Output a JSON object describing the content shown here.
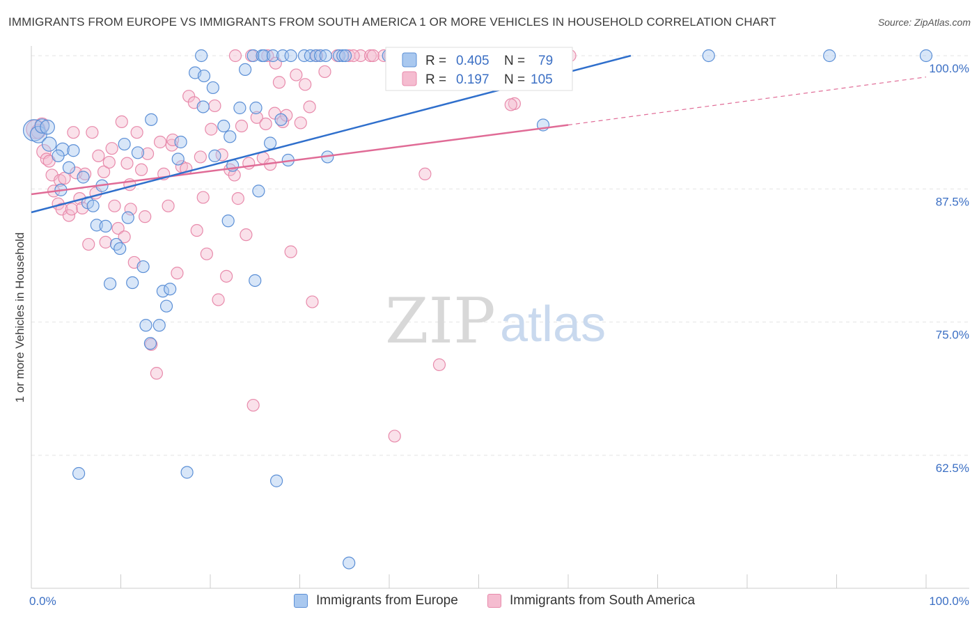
{
  "header": {
    "title": "IMMIGRANTS FROM EUROPE VS IMMIGRANTS FROM SOUTH AMERICA 1 OR MORE VEHICLES IN HOUSEHOLD CORRELATION CHART",
    "source": "Source: ZipAtlas.com"
  },
  "watermark": {
    "zip": "ZIP",
    "atlas": "atlas"
  },
  "legend_stats": {
    "europe": {
      "r_label": "R =",
      "r_value": "0.405",
      "n_label": "N =",
      "n_value": "79"
    },
    "south_america": {
      "r_label": "R =",
      "r_value": "0.197",
      "n_label": "N =",
      "n_value": "105"
    }
  },
  "colors": {
    "europe_fill": "#a9c8ef",
    "europe_stroke": "#5b8fd6",
    "europe_line": "#2f6fcc",
    "sa_fill": "#f5bcd0",
    "sa_stroke": "#e88aab",
    "sa_line": "#e06b96",
    "tick_text": "#3b6fc4",
    "grid": "#e3e3e3"
  },
  "chart_data": {
    "type": "scatter",
    "title": "IMMIGRANTS FROM EUROPE VS IMMIGRANTS FROM SOUTH AMERICA 1 OR MORE VEHICLES IN HOUSEHOLD CORRELATION CHART",
    "xlabel": "",
    "ylabel": "1 or more Vehicles in Household",
    "xlim": [
      0,
      100
    ],
    "ylim": [
      52.5,
      102.5
    ],
    "x_tick_labels": [
      "0.0%",
      "100.0%"
    ],
    "y_ticks": [
      62.5,
      75.0,
      87.5,
      100.0
    ],
    "y_tick_labels": [
      "62.5%",
      "75.0%",
      "87.5%",
      "100.0%"
    ],
    "grid": true,
    "legend_position": "bottom",
    "series": [
      {
        "name": "Immigrants from Europe",
        "r": 0.405,
        "n": 79,
        "trend": {
          "x": [
            0,
            67
          ],
          "y": [
            85.3,
            100.0
          ]
        },
        "points": [
          [
            0.3,
            93.0,
            18
          ],
          [
            0.8,
            92.6,
            14
          ],
          [
            1.2,
            93.4,
            12
          ],
          [
            1.8,
            93.3,
            12
          ],
          [
            2.0,
            91.7,
            12
          ],
          [
            3.5,
            91.2,
            11
          ],
          [
            4.7,
            91.1,
            10
          ],
          [
            4.2,
            89.5,
            10
          ],
          [
            3.0,
            90.6,
            10
          ],
          [
            5.8,
            88.6,
            10
          ],
          [
            7.9,
            87.8,
            10
          ],
          [
            6.3,
            86.2,
            10
          ],
          [
            6.9,
            85.9,
            10
          ],
          [
            3.3,
            87.4,
            10
          ],
          [
            7.3,
            84.1,
            10
          ],
          [
            8.3,
            84.0,
            10
          ],
          [
            9.5,
            82.3,
            10
          ],
          [
            9.9,
            81.9,
            10
          ],
          [
            10.8,
            84.8,
            10
          ],
          [
            12.5,
            80.2,
            10
          ],
          [
            8.8,
            78.6,
            10
          ],
          [
            11.3,
            78.7,
            10
          ],
          [
            14.7,
            77.9,
            10
          ],
          [
            15.5,
            78.1,
            10
          ],
          [
            15.1,
            76.5,
            10
          ],
          [
            12.8,
            74.7,
            10
          ],
          [
            14.3,
            74.7,
            10
          ],
          [
            13.3,
            73.0,
            10
          ],
          [
            5.3,
            60.8,
            10
          ],
          [
            17.4,
            60.9,
            10
          ],
          [
            27.4,
            60.1,
            10
          ],
          [
            35.5,
            52.4,
            10
          ],
          [
            10.4,
            91.7,
            10
          ],
          [
            11.9,
            90.9,
            10
          ],
          [
            13.4,
            94.0,
            10
          ],
          [
            16.7,
            91.9,
            10
          ],
          [
            16.4,
            90.3,
            10
          ],
          [
            18.3,
            98.4,
            10
          ],
          [
            19.2,
            95.2,
            10
          ],
          [
            19.3,
            98.1,
            10
          ],
          [
            20.3,
            97.0,
            10
          ],
          [
            20.5,
            90.6,
            10
          ],
          [
            21.5,
            93.4,
            10
          ],
          [
            23.9,
            98.7,
            10
          ],
          [
            22.2,
            92.4,
            10
          ],
          [
            22.5,
            89.7,
            10
          ],
          [
            22.0,
            84.5,
            10
          ],
          [
            25.1,
            95.1,
            10
          ],
          [
            23.3,
            95.1,
            10
          ],
          [
            27.9,
            94.0,
            10
          ],
          [
            25.4,
            87.3,
            10
          ],
          [
            25.0,
            78.9,
            10
          ],
          [
            26.7,
            91.8,
            10
          ],
          [
            28.7,
            90.2,
            10
          ],
          [
            33.1,
            90.5,
            10
          ],
          [
            19.0,
            100.0,
            10
          ],
          [
            24.8,
            100.0,
            10
          ],
          [
            25.8,
            100.0,
            10
          ],
          [
            26.0,
            100.0,
            10
          ],
          [
            27.0,
            100.0,
            10
          ],
          [
            28.1,
            100.0,
            10
          ],
          [
            29.0,
            100.0,
            10
          ],
          [
            30.5,
            100.0,
            10
          ],
          [
            31.2,
            100.0,
            10
          ],
          [
            31.8,
            100.0,
            10
          ],
          [
            32.3,
            100.0,
            10
          ],
          [
            32.9,
            100.0,
            10
          ],
          [
            34.4,
            100.0,
            10
          ],
          [
            34.8,
            100.0,
            10
          ],
          [
            35.1,
            100.0,
            10
          ],
          [
            39.9,
            100.0,
            10
          ],
          [
            43.5,
            100.0,
            10
          ],
          [
            47.7,
            100.0,
            10
          ],
          [
            48.5,
            100.0,
            10
          ],
          [
            53.8,
            100.0,
            10
          ],
          [
            75.7,
            100.0,
            10
          ],
          [
            89.2,
            100.0,
            10
          ],
          [
            100.0,
            100.0,
            10
          ],
          [
            57.2,
            93.5,
            10
          ]
        ]
      },
      {
        "name": "Immigrants from South America",
        "r": 0.197,
        "n": 105,
        "trend": {
          "x": [
            0,
            60
          ],
          "y": [
            87.0,
            93.5
          ]
        },
        "trend_dashed": {
          "x": [
            60,
            100
          ],
          "y": [
            93.5,
            98.0
          ]
        },
        "points": [
          [
            0.5,
            93.1,
            16
          ],
          [
            1.2,
            93.5,
            12
          ],
          [
            0.8,
            92.9,
            12
          ],
          [
            1.4,
            91.0,
            12
          ],
          [
            1.7,
            90.3,
            10
          ],
          [
            2.0,
            90.1,
            10
          ],
          [
            2.3,
            88.8,
            10
          ],
          [
            2.5,
            87.3,
            10
          ],
          [
            3.0,
            86.1,
            10
          ],
          [
            3.2,
            88.3,
            10
          ],
          [
            3.4,
            85.6,
            10
          ],
          [
            3.7,
            88.5,
            10
          ],
          [
            4.2,
            85.0,
            10
          ],
          [
            4.5,
            85.6,
            10
          ],
          [
            4.7,
            92.8,
            10
          ],
          [
            5.0,
            89.0,
            10
          ],
          [
            5.4,
            86.6,
            10
          ],
          [
            5.7,
            85.7,
            10
          ],
          [
            6.0,
            88.9,
            10
          ],
          [
            6.4,
            82.3,
            10
          ],
          [
            6.8,
            92.8,
            10
          ],
          [
            7.2,
            87.1,
            10
          ],
          [
            7.5,
            90.6,
            10
          ],
          [
            8.1,
            89.1,
            10
          ],
          [
            8.3,
            82.5,
            10
          ],
          [
            8.7,
            90.0,
            10
          ],
          [
            9.0,
            91.3,
            10
          ],
          [
            9.3,
            85.9,
            10
          ],
          [
            9.7,
            83.8,
            10
          ],
          [
            10.1,
            93.8,
            10
          ],
          [
            10.4,
            83.0,
            10
          ],
          [
            10.7,
            89.9,
            10
          ],
          [
            11.1,
            85.6,
            10
          ],
          [
            11.5,
            80.6,
            10
          ],
          [
            11.8,
            92.8,
            10
          ],
          [
            12.3,
            89.3,
            10
          ],
          [
            12.7,
            84.9,
            10
          ],
          [
            13.0,
            90.8,
            10
          ],
          [
            13.4,
            72.9,
            10
          ],
          [
            14.0,
            70.2,
            10
          ],
          [
            14.4,
            91.9,
            10
          ],
          [
            14.8,
            88.9,
            10
          ],
          [
            15.3,
            85.9,
            10
          ],
          [
            15.7,
            91.6,
            10
          ],
          [
            16.3,
            79.6,
            10
          ],
          [
            16.8,
            89.6,
            10
          ],
          [
            17.3,
            89.4,
            10
          ],
          [
            17.6,
            96.2,
            10
          ],
          [
            18.2,
            95.6,
            10
          ],
          [
            18.5,
            83.6,
            10
          ],
          [
            18.9,
            90.5,
            10
          ],
          [
            19.2,
            86.7,
            10
          ],
          [
            19.6,
            81.4,
            10
          ],
          [
            20.1,
            93.1,
            10
          ],
          [
            20.5,
            95.3,
            10
          ],
          [
            20.9,
            77.1,
            10
          ],
          [
            21.3,
            90.7,
            10
          ],
          [
            21.8,
            79.3,
            10
          ],
          [
            22.2,
            89.3,
            10
          ],
          [
            22.7,
            88.8,
            10
          ],
          [
            23.1,
            86.6,
            10
          ],
          [
            23.5,
            93.4,
            10
          ],
          [
            24.0,
            83.2,
            10
          ],
          [
            24.3,
            89.9,
            10
          ],
          [
            24.8,
            67.2,
            10
          ],
          [
            25.2,
            94.2,
            10
          ],
          [
            25.9,
            90.4,
            10
          ],
          [
            26.2,
            93.6,
            10
          ],
          [
            26.7,
            89.8,
            10
          ],
          [
            27.2,
            94.6,
            10
          ],
          [
            27.7,
            97.5,
            10
          ],
          [
            28.1,
            93.8,
            10
          ],
          [
            29.0,
            81.6,
            10
          ],
          [
            29.6,
            98.2,
            10
          ],
          [
            30.1,
            93.7,
            10
          ],
          [
            30.6,
            97.3,
            10
          ],
          [
            31.1,
            95.2,
            10
          ],
          [
            31.4,
            76.9,
            10
          ],
          [
            31.9,
            100.0,
            10
          ],
          [
            32.8,
            98.5,
            10
          ],
          [
            34.2,
            100.0,
            10
          ],
          [
            36.8,
            100.0,
            10
          ],
          [
            37.9,
            100.0,
            10
          ],
          [
            40.1,
            100.0,
            10
          ],
          [
            40.6,
            64.3,
            10
          ],
          [
            44.0,
            88.9,
            10
          ],
          [
            45.6,
            71.0,
            10
          ],
          [
            50.1,
            100.0,
            10
          ],
          [
            54.0,
            95.5,
            10
          ],
          [
            53.6,
            95.4,
            10
          ],
          [
            60.2,
            100.0,
            10
          ],
          [
            22.8,
            100.0,
            10
          ],
          [
            24.6,
            100.0,
            10
          ],
          [
            26.4,
            100.0,
            10
          ],
          [
            27.3,
            99.3,
            10
          ],
          [
            35.5,
            100.0,
            10
          ],
          [
            36.0,
            100.0,
            10
          ],
          [
            38.2,
            100.0,
            10
          ],
          [
            39.4,
            100.0,
            10
          ],
          [
            42.4,
            100.0,
            10
          ],
          [
            46.5,
            100.0,
            10
          ],
          [
            48.0,
            100.0,
            10
          ],
          [
            28.5,
            94.4,
            10
          ],
          [
            15.8,
            92.1,
            10
          ],
          [
            11.0,
            87.9,
            10
          ]
        ]
      }
    ]
  }
}
